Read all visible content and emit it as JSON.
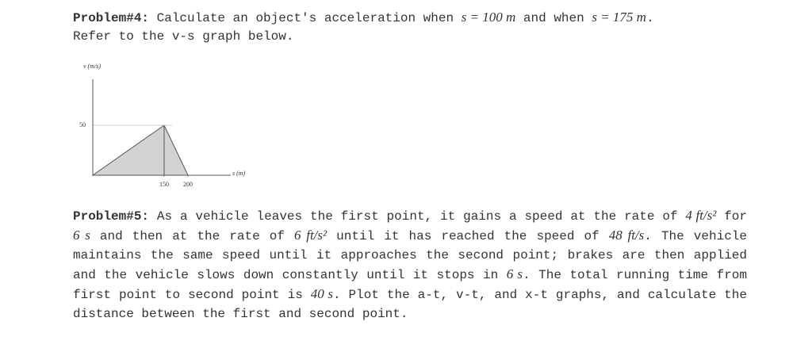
{
  "problem4": {
    "segments": [
      {
        "text": "Problem#4:",
        "bold": true
      },
      {
        "text": " Calculate an object's acceleration when "
      },
      {
        "text": "s = 100 m",
        "math": true
      },
      {
        "text": " and when "
      },
      {
        "text": "s = 175 m",
        "math": true
      },
      {
        "text": "."
      }
    ],
    "line2": "Refer to the v-s graph below."
  },
  "figure": {
    "type": "line",
    "y_label": "v (m/s)",
    "x_label": "s (m)",
    "x": [
      0,
      150,
      200
    ],
    "values": [
      0,
      50,
      0
    ],
    "color": "#d3d3d3",
    "xlim": [
      0,
      290
    ],
    "ylim": [
      0,
      96
    ],
    "xticks": [
      150,
      200
    ],
    "yticks": [
      50
    ]
  },
  "problem5": {
    "segments": [
      {
        "text": "Problem#5:",
        "bold": true
      },
      {
        "text": " As a vehicle leaves the first point, it gains a speed at the rate of "
      },
      {
        "text": "4 ft/s²",
        "math": true
      },
      {
        "text": " for "
      },
      {
        "text": "6 s",
        "math": true
      },
      {
        "text": " and then at the rate of "
      },
      {
        "text": "6 ft/s²",
        "math": true
      },
      {
        "text": " until it has reached the speed of "
      },
      {
        "text": "48 ft/s",
        "math": true
      },
      {
        "text": ". The vehicle maintains the same speed until it approaches the second point; brakes are then applied and the vehicle slows down constantly until it stops in "
      },
      {
        "text": "6 s",
        "math": true
      },
      {
        "text": ". The total running time from first point to second point is "
      },
      {
        "text": "40 s",
        "math": true
      },
      {
        "text": ". Plot the a-t, v-t, and x-t graphs, and calculate the distance between the first and second point."
      }
    ]
  }
}
